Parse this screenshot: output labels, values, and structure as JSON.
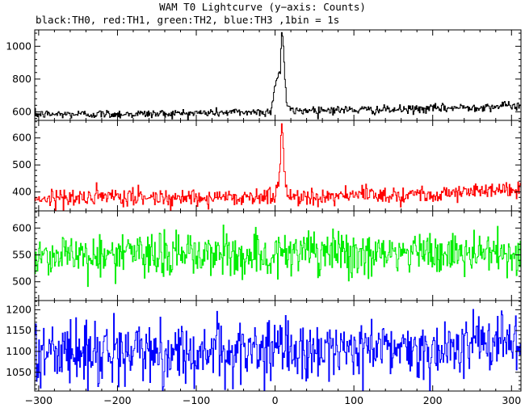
{
  "title": "WAM T0 Lightcurve (y−axis: Counts)",
  "subtitle": "black:TH0, red:TH1, green:TH2, blue:TH3 ,1bin = 1s",
  "chart_data": {
    "type": "line",
    "xlabel": "",
    "ylabel": "Counts",
    "x_range": [
      -305,
      312
    ],
    "x_ticks": [
      -300,
      -200,
      -100,
      0,
      100,
      200,
      300
    ],
    "bin_seconds": 1,
    "panels": [
      {
        "legend_key": "TH0",
        "color": "#000000",
        "y_range": [
          548,
          1100
        ],
        "y_ticks": [
          600,
          800,
          1000
        ],
        "profile": {
          "baseline": [
            [
              -305,
              585
            ],
            [
              -150,
              588
            ],
            [
              -50,
              598
            ],
            [
              0,
              600
            ],
            [
              50,
              612
            ],
            [
              150,
              612
            ],
            [
              250,
              628
            ],
            [
              312,
              640
            ]
          ],
          "noise_sd": 13,
          "peak": [
            [
              -6,
              580
            ],
            [
              -1,
              760
            ],
            [
              3,
              820
            ],
            [
              6,
              840
            ],
            [
              7,
              1000
            ],
            [
              8,
              1090
            ],
            [
              10,
              1010
            ],
            [
              12,
              800
            ],
            [
              14,
              660
            ],
            [
              18,
              615
            ]
          ]
        }
      },
      {
        "legend_key": "TH1",
        "color": "#ff0000",
        "y_range": [
          330,
          665
        ],
        "y_ticks": [
          400,
          500,
          600
        ],
        "profile": {
          "baseline": [
            [
              -305,
              378
            ],
            [
              -150,
              380
            ],
            [
              0,
              382
            ],
            [
              150,
              390
            ],
            [
              250,
              400
            ],
            [
              312,
              410
            ]
          ],
          "noise_sd": 16,
          "peak": [
            [
              0,
              390
            ],
            [
              4,
              440
            ],
            [
              6,
              500
            ],
            [
              7,
              600
            ],
            [
              8,
              650
            ],
            [
              9,
              620
            ],
            [
              11,
              490
            ],
            [
              13,
              420
            ],
            [
              16,
              392
            ]
          ]
        }
      },
      {
        "legend_key": "TH2",
        "color": "#00ee00",
        "y_range": [
          465,
          632
        ],
        "y_ticks": [
          500,
          550,
          600
        ],
        "profile": {
          "baseline": [
            [
              -305,
              550
            ],
            [
              0,
              551
            ],
            [
              312,
              553
            ]
          ],
          "noise_sd": 21,
          "peak": []
        }
      },
      {
        "legend_key": "TH3",
        "color": "#0000ff",
        "y_range": [
          1005,
          1222
        ],
        "y_ticks": [
          1050,
          1100,
          1150,
          1200
        ],
        "profile": {
          "baseline": [
            [
              -305,
              1098
            ],
            [
              -100,
              1098
            ],
            [
              100,
              1105
            ],
            [
              200,
              1110
            ],
            [
              312,
              1120
            ]
          ],
          "noise_sd": 36,
          "peak": []
        }
      }
    ]
  }
}
